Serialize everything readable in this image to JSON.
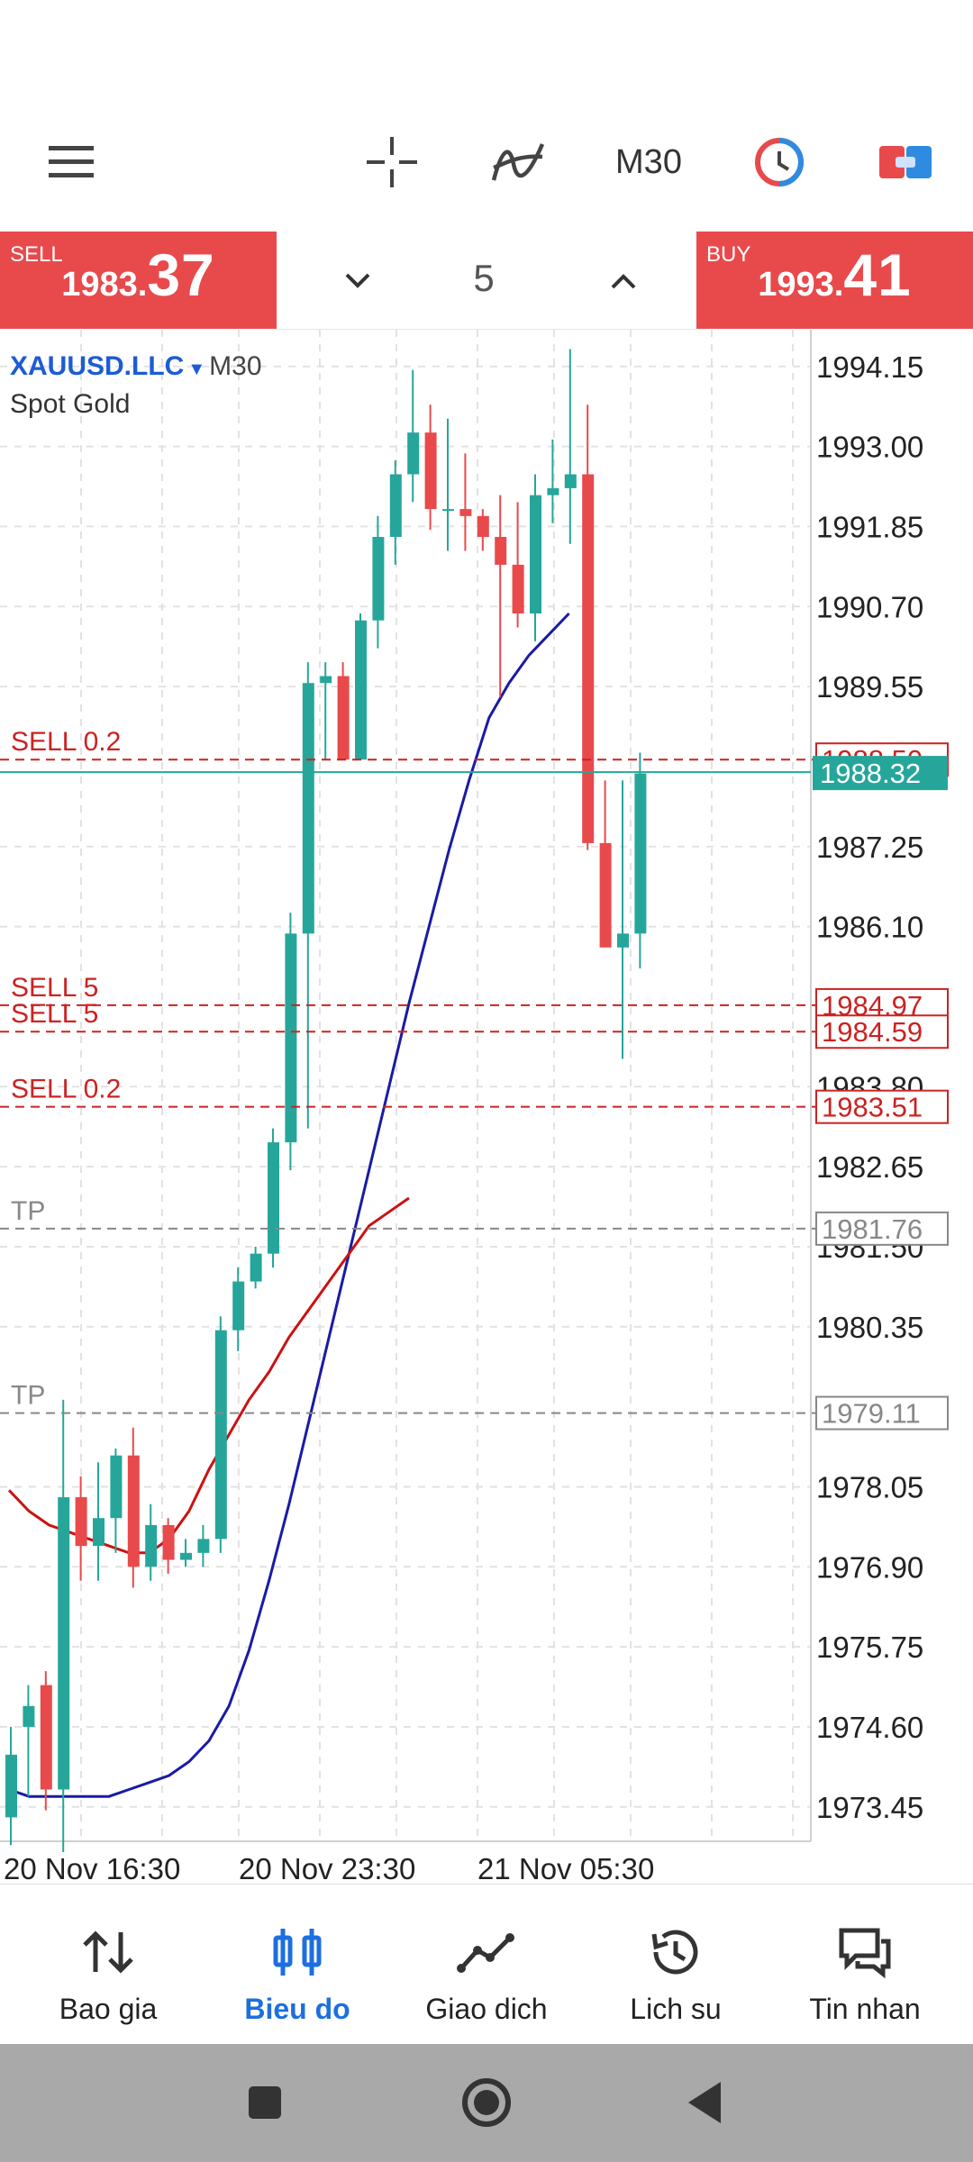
{
  "toolbar": {
    "menu_icon": "hamburger-menu-icon",
    "crosshair_icon": "crosshair-icon",
    "indicator_icon": "indicator-icon",
    "timeframe": "M30",
    "theme_icon": "theme-toggle-icon",
    "color_scheme_icon": "color-scheme-icon"
  },
  "trade": {
    "sell_label": "SELL",
    "sell_price_main": "1983.",
    "sell_price_big": "37",
    "buy_label": "BUY",
    "buy_price_main": "1993.",
    "buy_price_big": "41",
    "volume": "5"
  },
  "chart": {
    "symbol": "XAUUSD.LLC",
    "timeframe": "M30",
    "description": "Spot Gold",
    "current_price": "1988.32",
    "price_labels": [
      "1994.15",
      "1993.00",
      "1991.85",
      "1990.70",
      "1989.55",
      "1987.25",
      "1986.10",
      "1983.80",
      "1982.65",
      "1981.50",
      "1980.35",
      "1978.05",
      "1976.90",
      "1975.75",
      "1974.60",
      "1973.45"
    ],
    "time_labels": [
      "20 Nov 16:30",
      "20 Nov 23:30",
      "21 Nov 05:30"
    ],
    "order_lines": [
      {
        "label": "SELL 0.2",
        "price": "1988.50",
        "tag": "1988.50"
      },
      {
        "label": "SELL 5",
        "price": "1984.97",
        "tag": "1984.97"
      },
      {
        "label": "SELL 5",
        "price": "1984.59",
        "tag": "1984.59"
      },
      {
        "label": "SELL 0.2",
        "price": "1983.51",
        "tag": "1983.51"
      },
      {
        "label": "TP",
        "price": "1981.76",
        "tag": "1981.76"
      },
      {
        "label": "TP",
        "price": "1979.11",
        "tag": "1979.11"
      }
    ],
    "colors": {
      "bull": "#26a69a",
      "bear": "#e84a4c",
      "ma_fast": "#1a1aa6",
      "ma_slow": "#cc1111",
      "order": "#cc2222",
      "tp": "#888888"
    }
  },
  "chart_data": {
    "type": "candlestick",
    "timeframe": "M30",
    "y_range": [
      1972.8,
      1994.6
    ],
    "candles": [
      {
        "o": 1973.3,
        "h": 1974.6,
        "l": 1972.9,
        "c": 1974.2
      },
      {
        "o": 1974.6,
        "h": 1975.2,
        "l": 1973.6,
        "c": 1974.9
      },
      {
        "o": 1975.2,
        "h": 1975.4,
        "l": 1973.4,
        "c": 1973.7
      },
      {
        "o": 1973.7,
        "h": 1979.3,
        "l": 1972.8,
        "c": 1977.9
      },
      {
        "o": 1977.9,
        "h": 1978.2,
        "l": 1976.7,
        "c": 1977.2
      },
      {
        "o": 1977.2,
        "h": 1978.4,
        "l": 1976.7,
        "c": 1977.6
      },
      {
        "o": 1977.6,
        "h": 1978.6,
        "l": 1977.1,
        "c": 1978.5
      },
      {
        "o": 1978.5,
        "h": 1978.9,
        "l": 1976.6,
        "c": 1976.9
      },
      {
        "o": 1976.9,
        "h": 1977.8,
        "l": 1976.7,
        "c": 1977.5
      },
      {
        "o": 1977.5,
        "h": 1977.6,
        "l": 1976.8,
        "c": 1977.0
      },
      {
        "o": 1977.0,
        "h": 1977.3,
        "l": 1976.9,
        "c": 1977.1
      },
      {
        "o": 1977.1,
        "h": 1977.5,
        "l": 1976.9,
        "c": 1977.3
      },
      {
        "o": 1977.3,
        "h": 1980.5,
        "l": 1977.1,
        "c": 1980.3
      },
      {
        "o": 1980.3,
        "h": 1981.2,
        "l": 1980.0,
        "c": 1981.0
      },
      {
        "o": 1981.0,
        "h": 1981.5,
        "l": 1980.9,
        "c": 1981.4
      },
      {
        "o": 1981.4,
        "h": 1983.2,
        "l": 1981.2,
        "c": 1983.0
      },
      {
        "o": 1983.0,
        "h": 1986.3,
        "l": 1982.6,
        "c": 1986.0
      },
      {
        "o": 1986.0,
        "h": 1989.9,
        "l": 1983.2,
        "c": 1989.6
      },
      {
        "o": 1989.6,
        "h": 1989.9,
        "l": 1988.5,
        "c": 1989.7
      },
      {
        "o": 1989.7,
        "h": 1989.9,
        "l": 1988.5,
        "c": 1988.5
      },
      {
        "o": 1988.5,
        "h": 1990.6,
        "l": 1988.5,
        "c": 1990.5
      },
      {
        "o": 1990.5,
        "h": 1992.0,
        "l": 1990.1,
        "c": 1991.7
      },
      {
        "o": 1991.7,
        "h": 1992.8,
        "l": 1991.3,
        "c": 1992.6
      },
      {
        "o": 1992.6,
        "h": 1994.1,
        "l": 1992.2,
        "c": 1993.2
      },
      {
        "o": 1993.2,
        "h": 1993.6,
        "l": 1991.8,
        "c": 1992.1
      },
      {
        "o": 1992.1,
        "h": 1993.4,
        "l": 1991.5,
        "c": 1992.1
      },
      {
        "o": 1992.1,
        "h": 1992.9,
        "l": 1991.5,
        "c": 1992.0
      },
      {
        "o": 1992.0,
        "h": 1992.1,
        "l": 1991.5,
        "c": 1991.7
      },
      {
        "o": 1991.7,
        "h": 1992.3,
        "l": 1989.4,
        "c": 1991.3
      },
      {
        "o": 1991.3,
        "h": 1992.2,
        "l": 1990.4,
        "c": 1990.6
      },
      {
        "o": 1990.6,
        "h": 1992.6,
        "l": 1990.2,
        "c": 1992.3
      },
      {
        "o": 1992.3,
        "h": 1993.1,
        "l": 1991.9,
        "c": 1992.4
      },
      {
        "o": 1992.4,
        "h": 1994.4,
        "l": 1991.6,
        "c": 1992.6
      },
      {
        "o": 1992.6,
        "h": 1993.6,
        "l": 1987.2,
        "c": 1987.3
      },
      {
        "o": 1987.3,
        "h": 1988.2,
        "l": 1985.8,
        "c": 1985.8
      },
      {
        "o": 1985.8,
        "h": 1988.2,
        "l": 1984.2,
        "c": 1986.0
      },
      {
        "o": 1986.0,
        "h": 1988.6,
        "l": 1985.5,
        "c": 1988.3
      }
    ],
    "ma_fast": [
      1973.7,
      1973.6,
      1973.6,
      1973.6,
      1973.6,
      1973.6,
      1973.7,
      1973.8,
      1973.9,
      1974.1,
      1974.4,
      1974.9,
      1975.7,
      1976.7,
      1977.8,
      1979.0,
      1980.2,
      1981.4,
      1982.6,
      1983.8,
      1985.0,
      1986.1,
      1987.2,
      1988.2,
      1989.1,
      1989.6,
      1990.0,
      1990.3,
      1990.6
    ],
    "ma_slow": [
      1978.0,
      1977.7,
      1977.5,
      1977.4,
      1977.3,
      1977.2,
      1977.1,
      1977.1,
      1977.3,
      1977.7,
      1978.3,
      1978.8,
      1979.3,
      1979.7,
      1980.2,
      1980.6,
      1981.0,
      1981.4,
      1981.8,
      1982.0,
      1982.2
    ],
    "current_price": 1988.32
  },
  "nav": {
    "items": [
      {
        "label": "Bao gia",
        "icon": "quotes-arrows-icon"
      },
      {
        "label": "Bieu do",
        "icon": "chart-candles-icon"
      },
      {
        "label": "Giao dich",
        "icon": "trade-line-icon"
      },
      {
        "label": "Lich su",
        "icon": "history-icon"
      },
      {
        "label": "Tin nhan",
        "icon": "messages-icon"
      }
    ]
  },
  "system": {
    "recent_icon": "recent-apps-icon",
    "home_icon": "home-icon",
    "back_icon": "back-icon"
  }
}
